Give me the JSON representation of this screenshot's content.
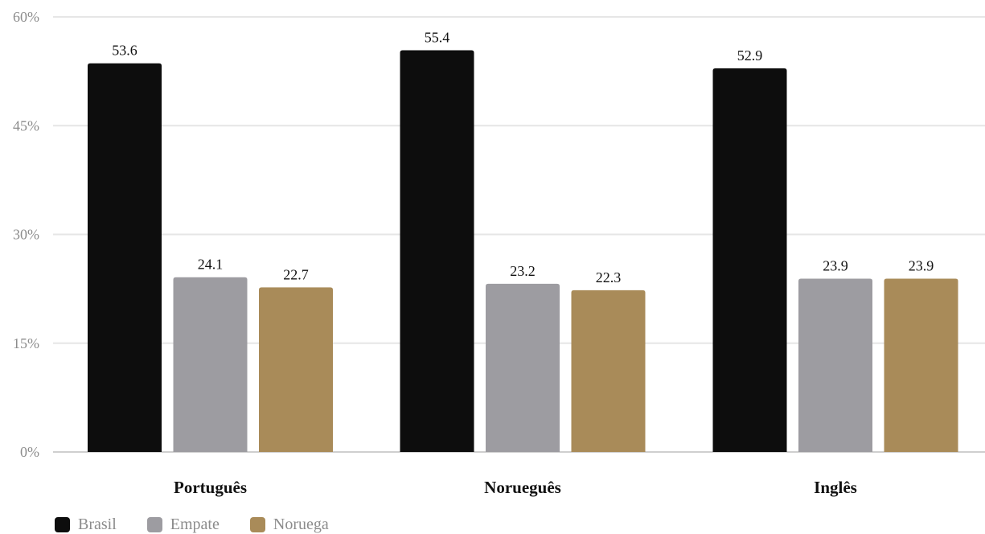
{
  "chart_data": {
    "type": "bar",
    "categories": [
      "Português",
      "Norueguês",
      "Inglês"
    ],
    "series": [
      {
        "name": "Brasil",
        "color": "#0d0d0d",
        "values": [
          53.6,
          55.4,
          52.9
        ]
      },
      {
        "name": "Empate",
        "color": "#9d9ca1",
        "values": [
          24.1,
          23.2,
          23.9
        ]
      },
      {
        "name": "Noruega",
        "color": "#a98b59",
        "values": [
          22.7,
          22.3,
          23.9
        ]
      }
    ],
    "y_ticks": [
      "0%",
      "15%",
      "30%",
      "45%",
      "60%"
    ],
    "ylim": [
      0,
      60
    ],
    "grid": true,
    "legend_position": "bottom-left"
  }
}
